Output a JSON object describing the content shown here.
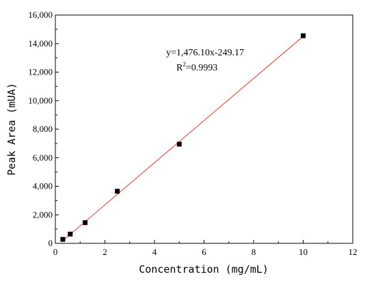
{
  "chart_data": {
    "type": "scatter",
    "title": "",
    "xlabel": "Concentration (mg/mL)",
    "ylabel": "Peak Area (mUA)",
    "xlim": [
      0,
      12
    ],
    "ylim": [
      0,
      16000
    ],
    "x_ticks": [
      0,
      2,
      4,
      6,
      8,
      10,
      12
    ],
    "y_ticks": [
      0,
      2000,
      4000,
      6000,
      8000,
      10000,
      12000,
      14000,
      16000
    ],
    "x_tick_labels": [
      "0",
      "2",
      "4",
      "6",
      "8",
      "10",
      "12"
    ],
    "y_tick_labels": [
      "0",
      "2,000",
      "4,000",
      "6,000",
      "8,000",
      "10,000",
      "12,000",
      "14,000",
      "16,000"
    ],
    "grid": false,
    "legend": "none",
    "points": [
      {
        "x": 0.3,
        "y": 280
      },
      {
        "x": 0.6,
        "y": 650
      },
      {
        "x": 1.2,
        "y": 1450
      },
      {
        "x": 2.5,
        "y": 3650
      },
      {
        "x": 5.0,
        "y": 6950
      },
      {
        "x": 10.0,
        "y": 14550
      }
    ],
    "marker_color": "#000000",
    "fit_line": {
      "slope": 1476.1,
      "intercept": -249.17,
      "x_range": [
        0.3,
        10.0
      ],
      "color": "#e8372f"
    },
    "annotation": {
      "equation": "y=1,476.10x-249.17",
      "r2_prefix": "R",
      "r2_sup": "2",
      "r2_value": "=0.9993"
    }
  }
}
